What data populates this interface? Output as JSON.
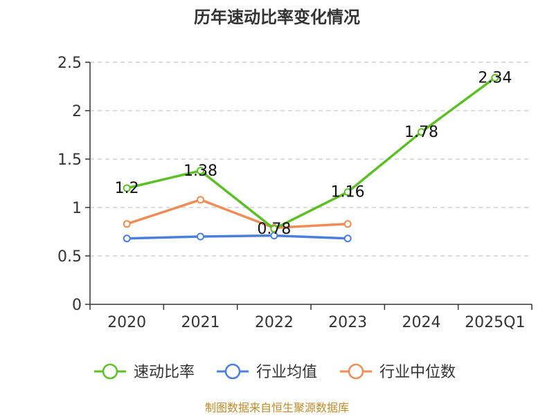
{
  "chart_data": {
    "type": "line",
    "title": "历年速动比率变化情况",
    "categories": [
      "2020",
      "2021",
      "2022",
      "2023",
      "2024",
      "2025Q1"
    ],
    "ylim": [
      0,
      2.5
    ],
    "yticks": [
      "0",
      "0.5",
      "1",
      "1.5",
      "2",
      "2.5"
    ],
    "grid": true,
    "legend_position": "bottom",
    "series": [
      {
        "name": "速动比率",
        "color": "#5cbf26",
        "values": [
          1.2,
          1.38,
          0.78,
          1.16,
          1.78,
          2.34
        ],
        "labels": [
          "1.2",
          "1.38",
          "0.78",
          "1.16",
          "1.78",
          "2.34"
        ]
      },
      {
        "name": "行业均值",
        "color": "#4a7fdb",
        "values": [
          0.68,
          0.7,
          0.71,
          0.68,
          null,
          null
        ]
      },
      {
        "name": "行业中位数",
        "color": "#f08c55",
        "values": [
          0.83,
          1.08,
          0.79,
          0.83,
          null,
          null
        ]
      }
    ],
    "source": "制图数据来自恒生聚源数据库"
  }
}
